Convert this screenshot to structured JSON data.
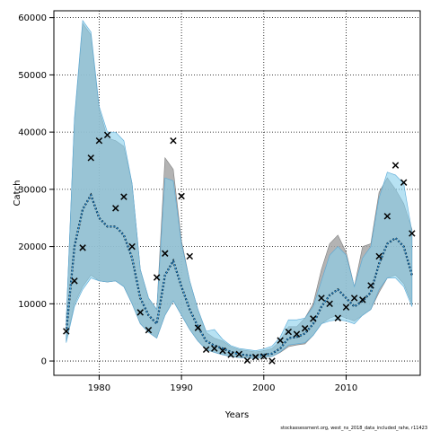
{
  "chart_data": {
    "type": "line",
    "xlabel": "Years",
    "ylabel": "Catch",
    "footer": "stockassessment.org, west_ns_2018_data_included_rahe, r11423",
    "xlim": [
      1974.5,
      2019
    ],
    "ylim": [
      -2500,
      61200
    ],
    "x_ticks": [
      1980,
      1990,
      2000,
      2010
    ],
    "y_ticks": [
      0,
      10000,
      20000,
      30000,
      40000,
      50000,
      60000
    ],
    "x_tick_labels": [
      "1980",
      "1990",
      "2000",
      "2010"
    ],
    "y_tick_labels": [
      "0",
      "10000",
      "20000",
      "30000",
      "40000",
      "50000",
      "60000"
    ],
    "grid": true,
    "colors": {
      "gray_band": "#a6a6a6",
      "blue_band": "#87ceeb",
      "line": "#000000",
      "markers": "#000000"
    },
    "years": [
      1976,
      1977,
      1978,
      1979,
      1980,
      1981,
      1982,
      1983,
      1984,
      1985,
      1986,
      1987,
      1988,
      1989,
      1990,
      1991,
      1992,
      1993,
      1994,
      1995,
      1996,
      1997,
      1998,
      1999,
      2000,
      2001,
      2002,
      2003,
      2004,
      2005,
      2006,
      2007,
      2008,
      2009,
      2010,
      2011,
      2012,
      2013,
      2014,
      2015,
      2016,
      2017,
      2018
    ],
    "series": [
      {
        "role": "estimate-gray",
        "values": [
          5000,
          20000,
          26500,
          29000,
          25000,
          23500,
          23500,
          22000,
          18000,
          11000,
          8000,
          6500,
          15000,
          17500,
          13000,
          9000,
          6000,
          3500,
          2700,
          2200,
          1600,
          1200,
          1000,
          900,
          1100,
          1300,
          2200,
          4000,
          4200,
          4800,
          6500,
          9500,
          11500,
          12500,
          11000,
          9500,
          10500,
          12000,
          17000,
          20500,
          21500,
          20000,
          15000
        ],
        "lower": [
          3500,
          10000,
          13000,
          15000,
          14000,
          13800,
          14000,
          13000,
          10000,
          6500,
          5000,
          4000,
          8000,
          10500,
          8000,
          5500,
          3500,
          2000,
          1500,
          1100,
          800,
          600,
          500,
          450,
          600,
          800,
          1500,
          2500,
          2800,
          3000,
          4500,
          6500,
          7500,
          8000,
          7500,
          7000,
          8000,
          9000,
          12000,
          14500,
          15000,
          13500,
          10000
        ],
        "upper": [
          7000,
          42000,
          59000,
          57000,
          44000,
          39000,
          38500,
          37500,
          31000,
          16000,
          11000,
          9000,
          35500,
          33500,
          21000,
          14000,
          9000,
          5000,
          4000,
          3500,
          2500,
          2000,
          1800,
          1600,
          1800,
          2200,
          3500,
          6000,
          6000,
          7500,
          10000,
          16000,
          20500,
          22000,
          19000,
          13000,
          20000,
          20500,
          29500,
          32000,
          30000,
          27500,
          23000
        ]
      },
      {
        "role": "estimate-blue",
        "values": [
          5000,
          20000,
          26500,
          29000,
          25000,
          23500,
          23500,
          22000,
          18000,
          11000,
          8000,
          6500,
          15000,
          17500,
          13000,
          9000,
          6000,
          3500,
          2700,
          2200,
          1600,
          1200,
          1000,
          900,
          1100,
          1300,
          2200,
          4000,
          4200,
          4800,
          6500,
          9500,
          11500,
          12500,
          11000,
          9500,
          10500,
          12000,
          17000,
          20500,
          21500,
          20000,
          15000
        ],
        "lower": [
          3200,
          9500,
          12500,
          14500,
          14000,
          13800,
          14000,
          13000,
          10000,
          6500,
          5000,
          4000,
          8000,
          10500,
          8000,
          5500,
          3500,
          2000,
          1500,
          1100,
          800,
          600,
          500,
          450,
          600,
          800,
          1600,
          2800,
          3000,
          3200,
          4500,
          6500,
          7000,
          7200,
          7000,
          6500,
          8000,
          9000,
          12500,
          14500,
          14500,
          13000,
          9500
        ],
        "upper": [
          7200,
          42500,
          59500,
          57500,
          44500,
          40000,
          40000,
          38500,
          31000,
          16000,
          11000,
          9000,
          32000,
          31500,
          20500,
          14000,
          9000,
          5200,
          5500,
          3800,
          2700,
          2200,
          2000,
          1800,
          2100,
          2600,
          4200,
          7200,
          7200,
          7500,
          9500,
          14000,
          18500,
          20000,
          18500,
          13000,
          18000,
          20000,
          28500,
          33000,
          32500,
          31000,
          22500
        ]
      },
      {
        "role": "observed-catch",
        "values": [
          5200,
          14000,
          19800,
          35500,
          38500,
          39500,
          26700,
          28700,
          20000,
          8500,
          5400,
          14600,
          18800,
          38500,
          28800,
          18300,
          5800,
          2000,
          2200,
          1800,
          1100,
          1200,
          100,
          700,
          800,
          0,
          3600,
          5100,
          4700,
          5700,
          7400,
          11000,
          10000,
          7500,
          9400,
          11000,
          10700,
          13200,
          18300,
          25300,
          34200,
          31200,
          22300
        ]
      }
    ]
  }
}
